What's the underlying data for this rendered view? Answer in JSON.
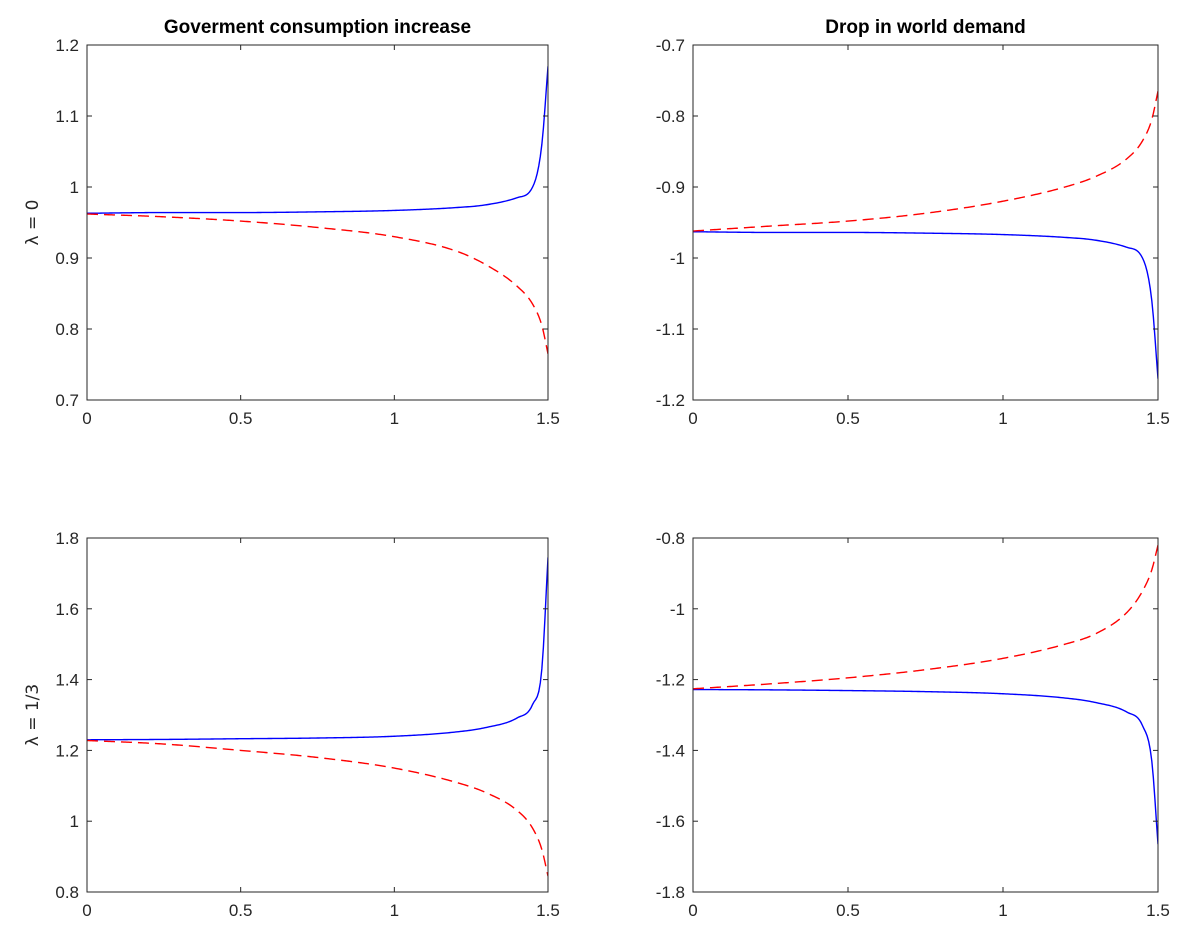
{
  "chart_data": [
    {
      "type": "line",
      "title": "Goverment consumption increase",
      "ylabel": "λ = 0",
      "xlim": [
        0,
        1.5
      ],
      "ylim": [
        0.7,
        1.2
      ],
      "xticks": [
        "0",
        "0.5",
        "1",
        "1.5"
      ],
      "yticks": [
        "0.7",
        "0.8",
        "0.9",
        "1",
        "1.1",
        "1.2"
      ],
      "x": [
        0,
        0.25,
        0.5,
        0.75,
        1.0,
        1.2,
        1.3,
        1.4,
        1.45,
        1.48,
        1.5
      ],
      "series": [
        {
          "color": "#0000ff",
          "style": "solid",
          "values": [
            0.963,
            0.964,
            0.964,
            0.965,
            0.967,
            0.971,
            0.975,
            0.985,
            1.0,
            1.06,
            1.17
          ]
        },
        {
          "color": "#ff0000",
          "style": "dashed",
          "values": [
            0.962,
            0.958,
            0.952,
            0.943,
            0.93,
            0.91,
            0.89,
            0.86,
            0.835,
            0.805,
            0.765
          ]
        }
      ]
    },
    {
      "type": "line",
      "title": "Drop in world demand",
      "ylabel": "",
      "xlim": [
        0,
        1.5
      ],
      "ylim": [
        -1.2,
        -0.7
      ],
      "xticks": [
        "0",
        "0.5",
        "1",
        "1.5"
      ],
      "yticks": [
        "-1.2",
        "-1.1",
        "-1",
        "-0.9",
        "-0.8",
        "-0.7"
      ],
      "x": [
        0,
        0.25,
        0.5,
        0.75,
        1.0,
        1.2,
        1.3,
        1.4,
        1.45,
        1.48,
        1.5
      ],
      "series": [
        {
          "color": "#0000ff",
          "style": "solid",
          "values": [
            -0.963,
            -0.964,
            -0.964,
            -0.965,
            -0.967,
            -0.971,
            -0.975,
            -0.985,
            -1.0,
            -1.06,
            -1.17
          ]
        },
        {
          "color": "#ff0000",
          "style": "dashed",
          "values": [
            -0.962,
            -0.955,
            -0.948,
            -0.937,
            -0.92,
            -0.9,
            -0.885,
            -0.86,
            -0.835,
            -0.805,
            -0.765
          ]
        }
      ]
    },
    {
      "type": "line",
      "title": "",
      "ylabel": "λ = 1/3",
      "xlim": [
        0,
        1.5
      ],
      "ylim": [
        0.8,
        1.8
      ],
      "xticks": [
        "0",
        "0.5",
        "1",
        "1.5"
      ],
      "yticks": [
        "0.8",
        "1",
        "1.2",
        "1.4",
        "1.6",
        "1.8"
      ],
      "x": [
        0,
        0.25,
        0.5,
        0.75,
        1.0,
        1.2,
        1.3,
        1.4,
        1.45,
        1.48,
        1.5
      ],
      "series": [
        {
          "color": "#0000ff",
          "style": "solid",
          "values": [
            1.23,
            1.231,
            1.233,
            1.235,
            1.24,
            1.252,
            1.265,
            1.292,
            1.33,
            1.43,
            1.745
          ]
        },
        {
          "color": "#ff0000",
          "style": "dashed",
          "values": [
            1.228,
            1.218,
            1.2,
            1.18,
            1.15,
            1.11,
            1.08,
            1.03,
            0.98,
            0.92,
            0.845
          ]
        }
      ]
    },
    {
      "type": "line",
      "title": "",
      "ylabel": "",
      "xlim": [
        0,
        1.5
      ],
      "ylim": [
        -1.8,
        -0.8
      ],
      "xticks": [
        "0",
        "0.5",
        "1",
        "1.5"
      ],
      "yticks": [
        "-1.8",
        "-1.6",
        "-1.4",
        "-1.2",
        "-1",
        "-0.8"
      ],
      "x": [
        0,
        0.25,
        0.5,
        0.75,
        1.0,
        1.2,
        1.3,
        1.4,
        1.45,
        1.48,
        1.5
      ],
      "series": [
        {
          "color": "#0000ff",
          "style": "solid",
          "values": [
            -1.228,
            -1.229,
            -1.231,
            -1.234,
            -1.24,
            -1.252,
            -1.265,
            -1.292,
            -1.33,
            -1.43,
            -1.665
          ]
        },
        {
          "color": "#ff0000",
          "style": "dashed",
          "values": [
            -1.226,
            -1.212,
            -1.195,
            -1.172,
            -1.14,
            -1.1,
            -1.07,
            -1.01,
            -0.95,
            -0.89,
            -0.82
          ]
        }
      ]
    }
  ]
}
